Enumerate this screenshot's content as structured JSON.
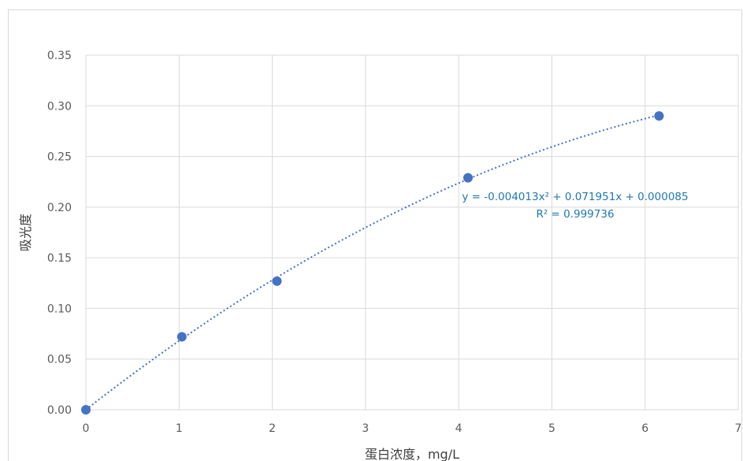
{
  "chart_data": {
    "type": "scatter",
    "title": "",
    "xlabel": "蛋白浓度，mg/L",
    "ylabel": "吸光度",
    "xlim": [
      0,
      7
    ],
    "ylim": [
      0,
      0.35
    ],
    "x_ticks": [
      "0",
      "1",
      "2",
      "3",
      "4",
      "5",
      "6",
      "7"
    ],
    "y_ticks": [
      "0.00",
      "0.05",
      "0.10",
      "0.15",
      "0.20",
      "0.25",
      "0.30",
      "0.35"
    ],
    "grid": true,
    "legend": "none",
    "point_color": "#4472c4",
    "points": [
      {
        "x": 0,
        "y": 0
      },
      {
        "x": 1.03,
        "y": 0.072
      },
      {
        "x": 2.05,
        "y": 0.127
      },
      {
        "x": 4.1,
        "y": 0.229
      },
      {
        "x": 6.15,
        "y": 0.29
      }
    ],
    "trendline": {
      "type": "polynomial",
      "order": 2,
      "coefficients": [
        -0.004013,
        0.071951,
        8.5e-05
      ],
      "style": "dotted",
      "color": "#4472c4"
    },
    "annotations": {
      "equation": "y = -0.004013x² + 0.071951x + 0.000085",
      "r_squared": "R² = 0.999736"
    }
  }
}
